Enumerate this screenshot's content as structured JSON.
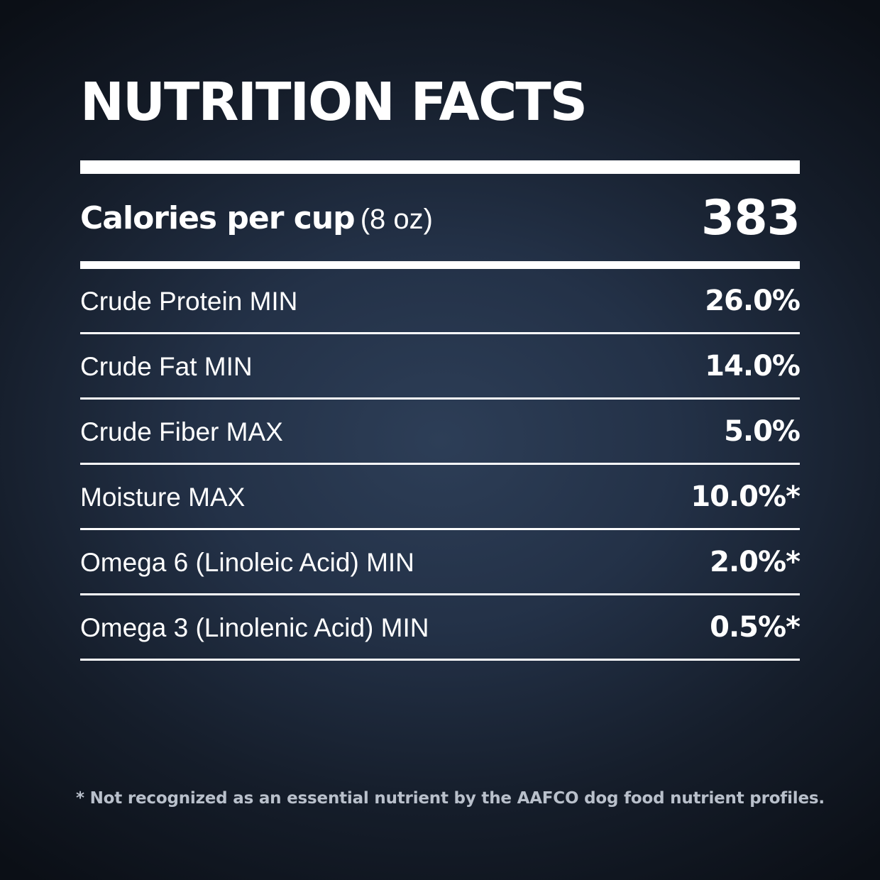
{
  "title": "NUTRITION FACTS",
  "calories": {
    "label": "Calories per cup",
    "unit": "(8 oz)",
    "value": "383"
  },
  "nutrients": [
    {
      "label": "Crude Protein MIN",
      "value": "26.0%"
    },
    {
      "label": "Crude Fat MIN",
      "value": "14.0%"
    },
    {
      "label": "Crude Fiber MAX",
      "value": "5.0%"
    },
    {
      "label": "Moisture MAX",
      "value": "10.0%*"
    },
    {
      "label": "Omega 6 (Linoleic Acid) MIN",
      "value": "2.0%*"
    },
    {
      "label": "Omega 3 (Linolenic Acid) MIN",
      "value": "0.5%*"
    }
  ],
  "footnote": "* Not recognized as an essential nutrient by the AAFCO dog food nutrient profiles."
}
